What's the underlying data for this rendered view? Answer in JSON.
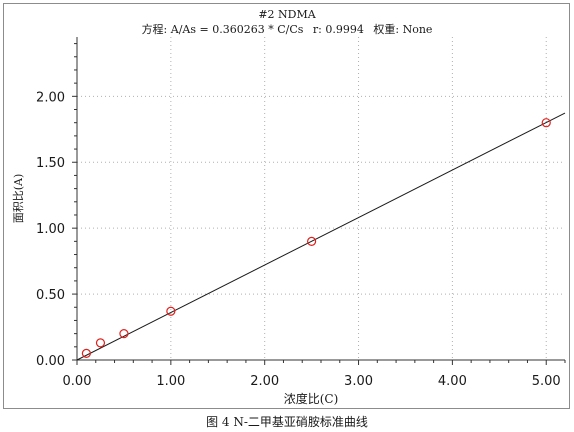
{
  "chart_data": {
    "type": "scatter",
    "title": "#2  NDMA",
    "equation": {
      "label": "方程:",
      "formula": "A/As = 0.360263 * C/Cs",
      "r_label": "r:",
      "r_value": "0.9994",
      "weight_label": "权重:",
      "weight_value": "None"
    },
    "xlabel": "浓度比(C)",
    "ylabel": "面积比(A)",
    "xlim": [
      0,
      5.2
    ],
    "ylim": [
      0,
      2.45
    ],
    "x_ticks": [
      "0.00",
      "1.00",
      "2.00",
      "3.00",
      "4.00",
      "5.00"
    ],
    "x_tick_values": [
      0,
      1,
      2,
      3,
      4,
      5
    ],
    "y_ticks": [
      "0.00",
      "0.50",
      "1.00",
      "1.50",
      "2.00"
    ],
    "y_tick_values": [
      0,
      0.5,
      1,
      1.5,
      2
    ],
    "grid": true,
    "points": {
      "x": [
        0.1,
        0.25,
        0.5,
        1.0,
        2.5,
        5.0
      ],
      "y": [
        0.05,
        0.13,
        0.2,
        0.37,
        0.9,
        1.8
      ]
    },
    "fit_line": {
      "slope": 0.360263,
      "intercept": 0,
      "x_range": [
        0,
        5.2
      ]
    },
    "colors": {
      "points": "#e0201c",
      "line": "#1a1a1a",
      "grid": "#b0b0b0",
      "axis": "#333333"
    }
  },
  "caption": "图 4    N-二甲基亚硝胺标准曲线"
}
